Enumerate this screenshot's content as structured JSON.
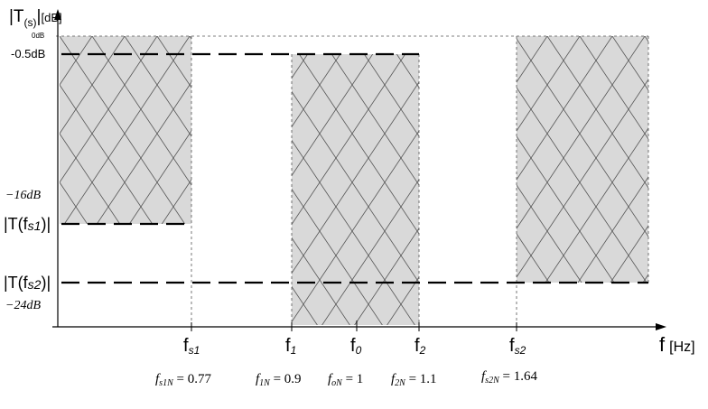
{
  "axes": {
    "y_label_main": "|T",
    "y_label_sub": "(s)",
    "y_label_bar": "|",
    "y_label_unit": "[dB]",
    "x_label_main": "f",
    "x_label_unit": "[Hz]"
  },
  "y_ticks": {
    "zero": "0dB",
    "pass_ripple": "-0.5dB",
    "atten_1": "−16dB",
    "atten_2": "−24dB"
  },
  "y_levels": {
    "ts1_prefix": "|T(f",
    "ts1_sub": "s1",
    "ts1_suffix": ")|",
    "ts2_prefix": "|T(f",
    "ts2_sub": "s2",
    "ts2_suffix": ")|"
  },
  "x_ticks": [
    {
      "main": "f",
      "sub": "s1"
    },
    {
      "main": "f",
      "sub": "1"
    },
    {
      "main": "f",
      "sub": "0"
    },
    {
      "main": "f",
      "sub": "2"
    },
    {
      "main": "f",
      "sub": "s2"
    }
  ],
  "normalized": [
    {
      "sym": "f",
      "sub": "s1N",
      "eq": " = 0.77"
    },
    {
      "sym": "f",
      "sub": "1N",
      "eq": " = 0.9"
    },
    {
      "sym": "f",
      "sub": "oN",
      "eq": " = 1"
    },
    {
      "sym": "f",
      "sub": "2N",
      "eq": " = 1.1"
    },
    {
      "sym": "f",
      "sub": "s2N",
      "eq": " = 1.64"
    }
  ],
  "colors": {
    "region_fill": "#d9d9d9",
    "hatch": "#555555",
    "lines": "#000000",
    "guides": "#555555"
  }
}
